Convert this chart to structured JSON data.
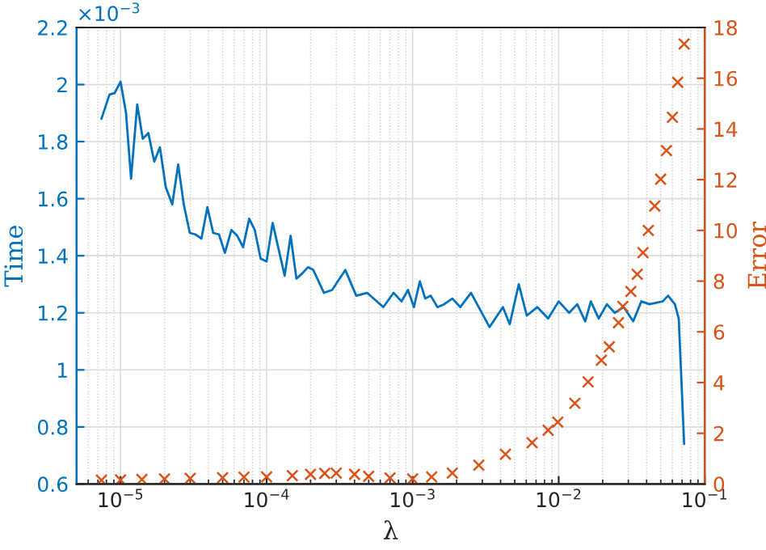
{
  "chart_data": {
    "type": "line",
    "xlabel": "λ",
    "ylabel": "Time",
    "y2label": "Error",
    "annotations": [
      "×10$^{−3}$"
    ],
    "log": "x",
    "grid": true,
    "xlim": [
      5e-06,
      0.1
    ],
    "xticks": [
      {
        "value": 1e-05,
        "label": "10$^{−5}$"
      },
      {
        "value": 0.0001,
        "label": "10$^{−4}$"
      },
      {
        "value": 0.001,
        "label": "10$^{−3}$"
      },
      {
        "value": 0.01,
        "label": "10$^{−2}$"
      },
      {
        "value": 0.1,
        "label": "10$^{−1}$"
      }
    ],
    "ylim": [
      0.6,
      2.2
    ],
    "yticks": [
      0.6,
      0.8,
      1,
      1.2,
      1.4,
      1.6,
      1.8,
      2,
      2.2
    ],
    "y2lim": [
      0,
      18
    ],
    "y2ticks": [
      0,
      2,
      4,
      6,
      8,
      10,
      12,
      14,
      16,
      18
    ],
    "series": [
      {
        "axis": "y",
        "color": "#0072bd",
        "marker": "none",
        "line_style": "solid",
        "x": [
          7.4e-06,
          8.4e-06,
          9.1e-06,
          1e-05,
          1.09e-05,
          1.18e-05,
          1.3e-05,
          1.42e-05,
          1.55e-05,
          1.7e-05,
          1.86e-05,
          2.04e-05,
          2.26e-05,
          2.48e-05,
          2.71e-05,
          2.98e-05,
          3.25e-05,
          3.58e-05,
          3.93e-05,
          4.31e-05,
          4.72e-05,
          5.18e-05,
          5.74e-05,
          6.3e-05,
          6.9e-05,
          7.6e-05,
          8.3e-05,
          9.1e-05,
          0.0001,
          0.00011,
          0.00012,
          0.000133,
          0.000146,
          0.00016,
          0.000177,
          0.000192,
          0.000209,
          0.000247,
          0.000281,
          0.000346,
          0.000411,
          0.000488,
          0.00063,
          0.00074,
          0.00084,
          0.00093,
          0.00102,
          0.00112,
          0.00122,
          0.00133,
          0.00148,
          0.00164,
          0.00187,
          0.00212,
          0.00251,
          0.00336,
          0.00415,
          0.00462,
          0.00533,
          0.00605,
          0.00714,
          0.00847,
          0.01,
          0.0118,
          0.0134,
          0.0152,
          0.0166,
          0.0188,
          0.0214,
          0.0242,
          0.0279,
          0.0324,
          0.0368,
          0.0418,
          0.0516,
          0.0561,
          0.0625,
          0.0664,
          0.0723
        ],
        "values": [
          1.88,
          1.965,
          1.97,
          2.01,
          1.9,
          1.67,
          1.93,
          1.81,
          1.83,
          1.73,
          1.78,
          1.64,
          1.58,
          1.72,
          1.58,
          1.48,
          1.475,
          1.46,
          1.57,
          1.48,
          1.475,
          1.41,
          1.49,
          1.47,
          1.43,
          1.53,
          1.49,
          1.39,
          1.38,
          1.515,
          1.43,
          1.33,
          1.47,
          1.32,
          1.34,
          1.36,
          1.35,
          1.27,
          1.28,
          1.35,
          1.26,
          1.27,
          1.22,
          1.27,
          1.24,
          1.28,
          1.22,
          1.31,
          1.25,
          1.26,
          1.22,
          1.23,
          1.25,
          1.22,
          1.27,
          1.15,
          1.22,
          1.16,
          1.3,
          1.19,
          1.22,
          1.18,
          1.24,
          1.2,
          1.23,
          1.17,
          1.24,
          1.18,
          1.23,
          1.2,
          1.22,
          1.17,
          1.24,
          1.23,
          1.24,
          1.26,
          1.23,
          1.18,
          0.74
        ]
      },
      {
        "type": "scatter",
        "axis": "y2",
        "color": "#d95319",
        "marker": "cross",
        "x": [
          7.4e-06,
          1e-05,
          1.4e-05,
          2e-05,
          3e-05,
          5e-05,
          7e-05,
          0.0001,
          0.00015,
          0.0002,
          0.00025,
          0.0003,
          0.0004,
          0.0005,
          0.0007,
          0.001,
          0.00135,
          0.00187,
          0.00284,
          0.00432,
          0.00658,
          0.00847,
          0.00986,
          0.0129,
          0.0159,
          0.0196,
          0.0222,
          0.0257,
          0.0275,
          0.0312,
          0.0345,
          0.0378,
          0.0411,
          0.0455,
          0.0499,
          0.0547,
          0.0601,
          0.0653,
          0.0723
        ],
        "values": [
          0.15,
          0.16,
          0.18,
          0.2,
          0.22,
          0.25,
          0.27,
          0.28,
          0.33,
          0.38,
          0.42,
          0.43,
          0.38,
          0.3,
          0.24,
          0.2,
          0.28,
          0.43,
          0.74,
          1.17,
          1.63,
          2.12,
          2.44,
          3.18,
          4.03,
          4.88,
          5.41,
          6.36,
          7.0,
          7.59,
          8.27,
          9.12,
          10.0,
          10.96,
          12.02,
          13.15,
          14.46,
          15.84,
          17.35
        ]
      }
    ]
  }
}
